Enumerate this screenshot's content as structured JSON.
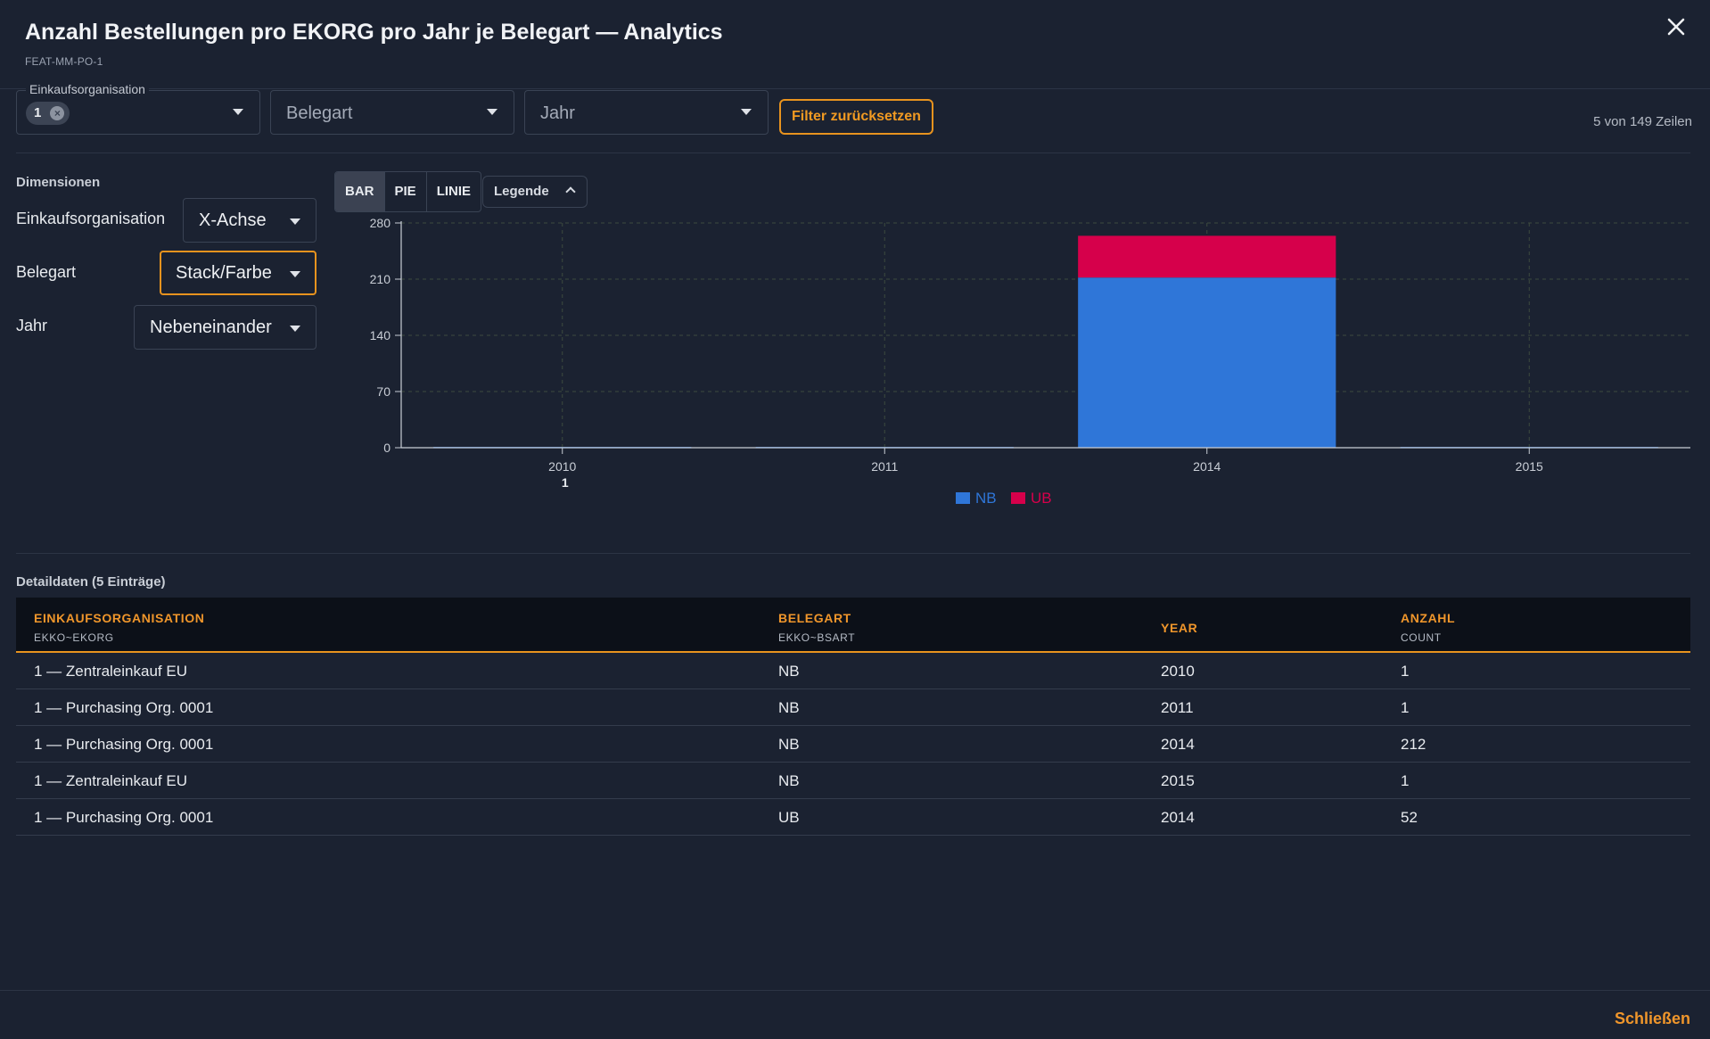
{
  "header": {
    "title": "Anzahl Bestellungen pro EKORG pro Jahr je Belegart — Analytics",
    "subtitle": "FEAT-MM-PO-1"
  },
  "filters": {
    "ekorg": {
      "label": "Einkaufsorganisation",
      "chip": "1"
    },
    "belegart": {
      "placeholder": "Belegart"
    },
    "jahr": {
      "placeholder": "Jahr"
    },
    "reset_label": "Filter zurücksetzen",
    "row_count": "5 von 149 Zeilen"
  },
  "dimensions": {
    "title": "Dimensionen",
    "items": [
      {
        "label": "Einkaufsorganisation",
        "value": "X-Achse"
      },
      {
        "label": "Belegart",
        "value": "Stack/Farbe"
      },
      {
        "label": "Jahr",
        "value": "Nebeneinander"
      }
    ]
  },
  "chart_types": [
    "BAR",
    "PIE",
    "LINIE"
  ],
  "selected_chart_type": "BAR",
  "legend_toggle": "Legende",
  "chart_data": {
    "type": "bar",
    "stacked": true,
    "categories": [
      "2010",
      "2011",
      "2014",
      "2015"
    ],
    "group_label": "1",
    "series": [
      {
        "name": "NB",
        "color": "#2f76d8",
        "values": [
          1,
          1,
          212,
          1
        ]
      },
      {
        "name": "UB",
        "color": "#d6004b",
        "values": [
          0,
          0,
          52,
          0
        ]
      }
    ],
    "y_ticks": [
      0,
      70,
      140,
      210,
      280
    ],
    "ylim": [
      0,
      280
    ],
    "grid": true,
    "legend_position": "bottom-center"
  },
  "table": {
    "title": "Detaildaten (5 Einträge)",
    "columns": [
      {
        "label": "EINKAUFSORGANISATION",
        "sub": "EKKO~EKORG"
      },
      {
        "label": "BELEGART",
        "sub": "EKKO~BSART"
      },
      {
        "label": "YEAR",
        "sub": ""
      },
      {
        "label": "ANZAHL",
        "sub": "COUNT"
      }
    ],
    "rows": [
      [
        "1 — Zentraleinkauf EU",
        "NB",
        "2010",
        "1"
      ],
      [
        "1 — Purchasing Org. 0001",
        "NB",
        "2011",
        "1"
      ],
      [
        "1 — Purchasing Org. 0001",
        "NB",
        "2014",
        "212"
      ],
      [
        "1 — Zentraleinkauf EU",
        "NB",
        "2015",
        "1"
      ],
      [
        "1 — Purchasing Org. 0001",
        "UB",
        "2014",
        "52"
      ]
    ]
  },
  "footer": {
    "close_label": "Schließen"
  }
}
